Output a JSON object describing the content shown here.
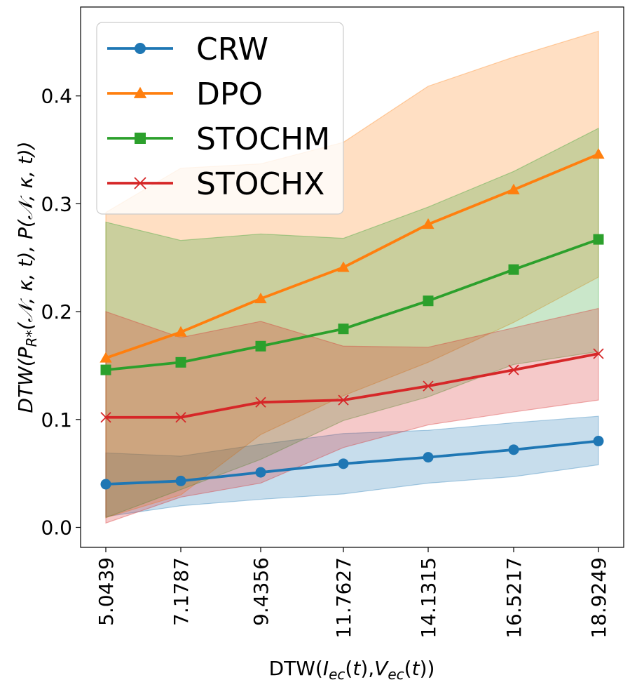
{
  "chart_data": {
    "type": "line",
    "x": [
      "5.0439",
      "7.1787",
      "9.4356",
      "11.7627",
      "14.1315",
      "16.5217",
      "18.9249"
    ],
    "xlabel": "DTW(I_ec(t),V_ec(t))",
    "ylabel": "DTW(P_R*(𝒩, κ, t), P(𝒩, κ, t))",
    "ylim": [
      -0.02,
      0.482
    ],
    "yticks": [
      "0.0",
      "0.1",
      "0.2",
      "0.3",
      "0.4"
    ],
    "legend_position": "top-left",
    "grid": false,
    "series": [
      {
        "name": "CRW",
        "color": "#1f77b4",
        "marker": "circle",
        "values": [
          0.04,
          0.043,
          0.051,
          0.059,
          0.065,
          0.072,
          0.08
        ],
        "lower": [
          0.01,
          0.02,
          0.026,
          0.031,
          0.041,
          0.047,
          0.058
        ],
        "upper": [
          0.069,
          0.066,
          0.077,
          0.087,
          0.09,
          0.097,
          0.103
        ]
      },
      {
        "name": "DPO",
        "color": "#ff7f0e",
        "marker": "triangle",
        "values": [
          0.157,
          0.181,
          0.212,
          0.241,
          0.281,
          0.313,
          0.346
        ],
        "lower": [
          0.009,
          0.03,
          0.086,
          0.122,
          0.153,
          0.19,
          0.232
        ],
        "upper": [
          0.292,
          0.333,
          0.337,
          0.357,
          0.409,
          0.436,
          0.46
        ]
      },
      {
        "name": "STOCHM",
        "color": "#2ca02c",
        "marker": "square",
        "values": [
          0.146,
          0.153,
          0.168,
          0.184,
          0.21,
          0.239,
          0.267
        ],
        "lower": [
          0.009,
          0.035,
          0.063,
          0.099,
          0.121,
          0.151,
          0.163
        ],
        "upper": [
          0.283,
          0.266,
          0.272,
          0.268,
          0.297,
          0.33,
          0.37
        ]
      },
      {
        "name": "STOCHX",
        "color": "#d62728",
        "marker": "x",
        "values": [
          0.102,
          0.102,
          0.116,
          0.118,
          0.131,
          0.146,
          0.161
        ],
        "lower": [
          0.004,
          0.028,
          0.041,
          0.074,
          0.095,
          0.107,
          0.118
        ],
        "upper": [
          0.2,
          0.176,
          0.191,
          0.168,
          0.167,
          0.185,
          0.203
        ]
      }
    ]
  }
}
